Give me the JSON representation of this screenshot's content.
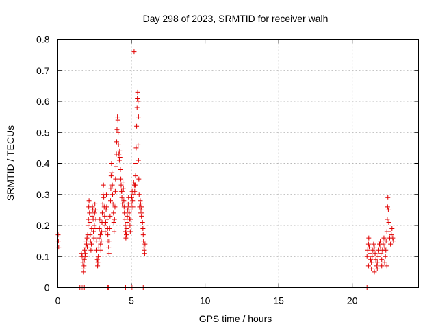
{
  "chart_data": {
    "type": "scatter",
    "title": "Day 298 of 2023, SRMTID for receiver walh",
    "xlabel": "GPS time / hours",
    "ylabel": "SRMTID / TECUs",
    "xlim": [
      0,
      24.5
    ],
    "ylim": [
      0,
      0.8
    ],
    "xticks": [
      0,
      5,
      10,
      15,
      20
    ],
    "xtick_labels": [
      "0",
      "5",
      "10",
      "15",
      "20"
    ],
    "yticks": [
      0,
      0.1,
      0.2,
      0.3,
      0.4,
      0.5,
      0.6,
      0.7,
      0.8
    ],
    "ytick_labels": [
      "0",
      "0.1",
      "0.2",
      "0.3",
      "0.4",
      "0.5",
      "0.6",
      "0.7",
      "0.8"
    ],
    "grid": true,
    "marker": "+",
    "color": "#e00000",
    "series": [
      {
        "name": "SRMTID",
        "points": [
          [
            0.02,
            0.17
          ],
          [
            0.04,
            0.15
          ],
          [
            0.06,
            0.13
          ],
          [
            1.5,
            0.0
          ],
          [
            1.6,
            0.0
          ],
          [
            1.7,
            0.0
          ],
          [
            1.8,
            0.0
          ],
          [
            1.6,
            0.11
          ],
          [
            1.65,
            0.1
          ],
          [
            1.7,
            0.08
          ],
          [
            1.72,
            0.06
          ],
          [
            1.75,
            0.05
          ],
          [
            1.78,
            0.07
          ],
          [
            1.8,
            0.09
          ],
          [
            1.82,
            0.12
          ],
          [
            1.85,
            0.11
          ],
          [
            1.88,
            0.1
          ],
          [
            1.9,
            0.13
          ],
          [
            1.93,
            0.15
          ],
          [
            1.95,
            0.14
          ],
          [
            1.98,
            0.16
          ],
          [
            2.0,
            0.13
          ],
          [
            2.03,
            0.17
          ],
          [
            2.05,
            0.2
          ],
          [
            2.08,
            0.22
          ],
          [
            2.1,
            0.26
          ],
          [
            2.12,
            0.28
          ],
          [
            2.15,
            0.24
          ],
          [
            2.18,
            0.21
          ],
          [
            2.2,
            0.17
          ],
          [
            2.22,
            0.15
          ],
          [
            2.25,
            0.12
          ],
          [
            2.28,
            0.14
          ],
          [
            2.3,
            0.19
          ],
          [
            2.33,
            0.23
          ],
          [
            2.35,
            0.26
          ],
          [
            2.38,
            0.25
          ],
          [
            2.4,
            0.22
          ],
          [
            2.42,
            0.18
          ],
          [
            2.45,
            0.16
          ],
          [
            2.48,
            0.2
          ],
          [
            2.5,
            0.24
          ],
          [
            2.52,
            0.27
          ],
          [
            2.55,
            0.25
          ],
          [
            2.58,
            0.22
          ],
          [
            2.6,
            0.19
          ],
          [
            2.62,
            0.15
          ],
          [
            2.65,
            0.12
          ],
          [
            2.68,
            0.09
          ],
          [
            2.7,
            0.07
          ],
          [
            2.72,
            0.08
          ],
          [
            2.75,
            0.1
          ],
          [
            2.78,
            0.13
          ],
          [
            2.8,
            0.16
          ],
          [
            2.82,
            0.19
          ],
          [
            2.85,
            0.22
          ],
          [
            2.88,
            0.17
          ],
          [
            2.9,
            0.14
          ],
          [
            2.92,
            0.12
          ],
          [
            2.95,
            0.15
          ],
          [
            2.98,
            0.18
          ],
          [
            3.0,
            0.21
          ],
          [
            3.02,
            0.24
          ],
          [
            3.05,
            0.27
          ],
          [
            3.08,
            0.3
          ],
          [
            3.1,
            0.33
          ],
          [
            3.12,
            0.29
          ],
          [
            3.15,
            0.26
          ],
          [
            3.18,
            0.23
          ],
          [
            3.2,
            0.2
          ],
          [
            3.22,
            0.18
          ],
          [
            3.25,
            0.21
          ],
          [
            3.28,
            0.25
          ],
          [
            3.3,
            0.3
          ],
          [
            3.32,
            0.26
          ],
          [
            3.35,
            0.22
          ],
          [
            3.38,
            0.19
          ],
          [
            3.4,
            0.17
          ],
          [
            3.42,
            0.15
          ],
          [
            3.45,
            0.13
          ],
          [
            3.48,
            0.11
          ],
          [
            3.4,
            0.0
          ],
          [
            3.45,
            0.0
          ],
          [
            3.5,
            0.15
          ],
          [
            3.52,
            0.19
          ],
          [
            3.55,
            0.23
          ],
          [
            3.58,
            0.28
          ],
          [
            3.6,
            0.32
          ],
          [
            3.62,
            0.36
          ],
          [
            3.65,
            0.4
          ],
          [
            3.68,
            0.37
          ],
          [
            3.7,
            0.33
          ],
          [
            3.72,
            0.3
          ],
          [
            3.75,
            0.27
          ],
          [
            3.78,
            0.24
          ],
          [
            3.8,
            0.21
          ],
          [
            3.82,
            0.18
          ],
          [
            3.85,
            0.22
          ],
          [
            3.88,
            0.26
          ],
          [
            3.9,
            0.31
          ],
          [
            3.92,
            0.35
          ],
          [
            3.95,
            0.39
          ],
          [
            3.98,
            0.43
          ],
          [
            4.0,
            0.47
          ],
          [
            4.02,
            0.51
          ],
          [
            4.05,
            0.55
          ],
          [
            4.08,
            0.54
          ],
          [
            4.1,
            0.5
          ],
          [
            4.12,
            0.46
          ],
          [
            4.15,
            0.43
          ],
          [
            4.18,
            0.41
          ],
          [
            4.2,
            0.44
          ],
          [
            4.22,
            0.42
          ],
          [
            4.25,
            0.38
          ],
          [
            4.28,
            0.35
          ],
          [
            4.3,
            0.33
          ],
          [
            4.32,
            0.31
          ],
          [
            4.35,
            0.29
          ],
          [
            4.38,
            0.27
          ],
          [
            4.4,
            0.31
          ],
          [
            4.42,
            0.34
          ],
          [
            4.45,
            0.32
          ],
          [
            4.48,
            0.28
          ],
          [
            4.5,
            0.26
          ],
          [
            4.52,
            0.24
          ],
          [
            4.55,
            0.22
          ],
          [
            4.58,
            0.2
          ],
          [
            4.6,
            0.18
          ],
          [
            4.62,
            0.16
          ],
          [
            4.65,
            0.17
          ],
          [
            4.68,
            0.19
          ],
          [
            4.7,
            0.21
          ],
          [
            4.72,
            0.23
          ],
          [
            4.75,
            0.25
          ],
          [
            4.78,
            0.27
          ],
          [
            4.8,
            0.29
          ],
          [
            4.82,
            0.26
          ],
          [
            4.85,
            0.24
          ],
          [
            4.88,
            0.22
          ],
          [
            4.9,
            0.2
          ],
          [
            4.92,
            0.18
          ],
          [
            4.95,
            0.22
          ],
          [
            4.98,
            0.25
          ],
          [
            4.6,
            0.0
          ],
          [
            5.0,
            0.0
          ],
          [
            5.1,
            0.0
          ],
          [
            5.0,
            0.27
          ],
          [
            5.02,
            0.29
          ],
          [
            5.05,
            0.31
          ],
          [
            5.08,
            0.28
          ],
          [
            5.1,
            0.26
          ],
          [
            5.12,
            0.3
          ],
          [
            5.15,
            0.34
          ],
          [
            5.18,
            0.76
          ],
          [
            5.2,
            0.33
          ],
          [
            5.22,
            0.31
          ],
          [
            5.25,
            0.33
          ],
          [
            5.28,
            0.36
          ],
          [
            5.3,
            0.4
          ],
          [
            5.32,
            0.45
          ],
          [
            5.35,
            0.52
          ],
          [
            5.38,
            0.58
          ],
          [
            5.4,
            0.61
          ],
          [
            5.42,
            0.63
          ],
          [
            5.45,
            0.6
          ],
          [
            5.48,
            0.55
          ],
          [
            5.45,
            0.46
          ],
          [
            5.48,
            0.41
          ],
          [
            5.5,
            0.35
          ],
          [
            5.52,
            0.3
          ],
          [
            5.55,
            0.26
          ],
          [
            5.58,
            0.24
          ],
          [
            5.6,
            0.28
          ],
          [
            5.62,
            0.27
          ],
          [
            5.65,
            0.25
          ],
          [
            5.68,
            0.23
          ],
          [
            5.7,
            0.26
          ],
          [
            5.72,
            0.24
          ],
          [
            5.75,
            0.21
          ],
          [
            5.78,
            0.19
          ],
          [
            5.8,
            0.17
          ],
          [
            5.82,
            0.15
          ],
          [
            5.85,
            0.13
          ],
          [
            5.88,
            0.12
          ],
          [
            5.9,
            0.11
          ],
          [
            5.92,
            0.14
          ],
          [
            5.3,
            0.0
          ],
          [
            5.8,
            0.0
          ],
          [
            21.0,
            0.0
          ],
          [
            21.0,
            0.1
          ],
          [
            21.05,
            0.12
          ],
          [
            21.1,
            0.14
          ],
          [
            21.12,
            0.16
          ],
          [
            21.15,
            0.13
          ],
          [
            21.2,
            0.11
          ],
          [
            21.25,
            0.09
          ],
          [
            21.3,
            0.08
          ],
          [
            21.35,
            0.1
          ],
          [
            21.4,
            0.12
          ],
          [
            21.45,
            0.14
          ],
          [
            21.5,
            0.13
          ],
          [
            21.55,
            0.11
          ],
          [
            21.6,
            0.09
          ],
          [
            21.65,
            0.07
          ],
          [
            21.7,
            0.08
          ],
          [
            21.75,
            0.1
          ],
          [
            21.8,
            0.12
          ],
          [
            21.85,
            0.14
          ],
          [
            21.9,
            0.15
          ],
          [
            21.92,
            0.13
          ],
          [
            21.95,
            0.11
          ],
          [
            22.0,
            0.09
          ],
          [
            22.05,
            0.12
          ],
          [
            22.1,
            0.14
          ],
          [
            22.15,
            0.16
          ],
          [
            22.2,
            0.13
          ],
          [
            22.25,
            0.1
          ],
          [
            22.28,
            0.12
          ],
          [
            22.3,
            0.15
          ],
          [
            22.35,
            0.18
          ],
          [
            22.38,
            0.22
          ],
          [
            22.4,
            0.26
          ],
          [
            22.42,
            0.29
          ],
          [
            22.45,
            0.25
          ],
          [
            22.48,
            0.21
          ],
          [
            22.5,
            0.18
          ],
          [
            22.55,
            0.16
          ],
          [
            22.6,
            0.14
          ],
          [
            22.65,
            0.17
          ],
          [
            22.7,
            0.19
          ],
          [
            22.75,
            0.16
          ],
          [
            22.8,
            0.15
          ],
          [
            21.1,
            0.07
          ],
          [
            21.3,
            0.06
          ],
          [
            21.5,
            0.05
          ],
          [
            21.7,
            0.06
          ],
          [
            22.0,
            0.07
          ],
          [
            22.2,
            0.08
          ],
          [
            22.35,
            0.07
          ]
        ]
      }
    ]
  }
}
